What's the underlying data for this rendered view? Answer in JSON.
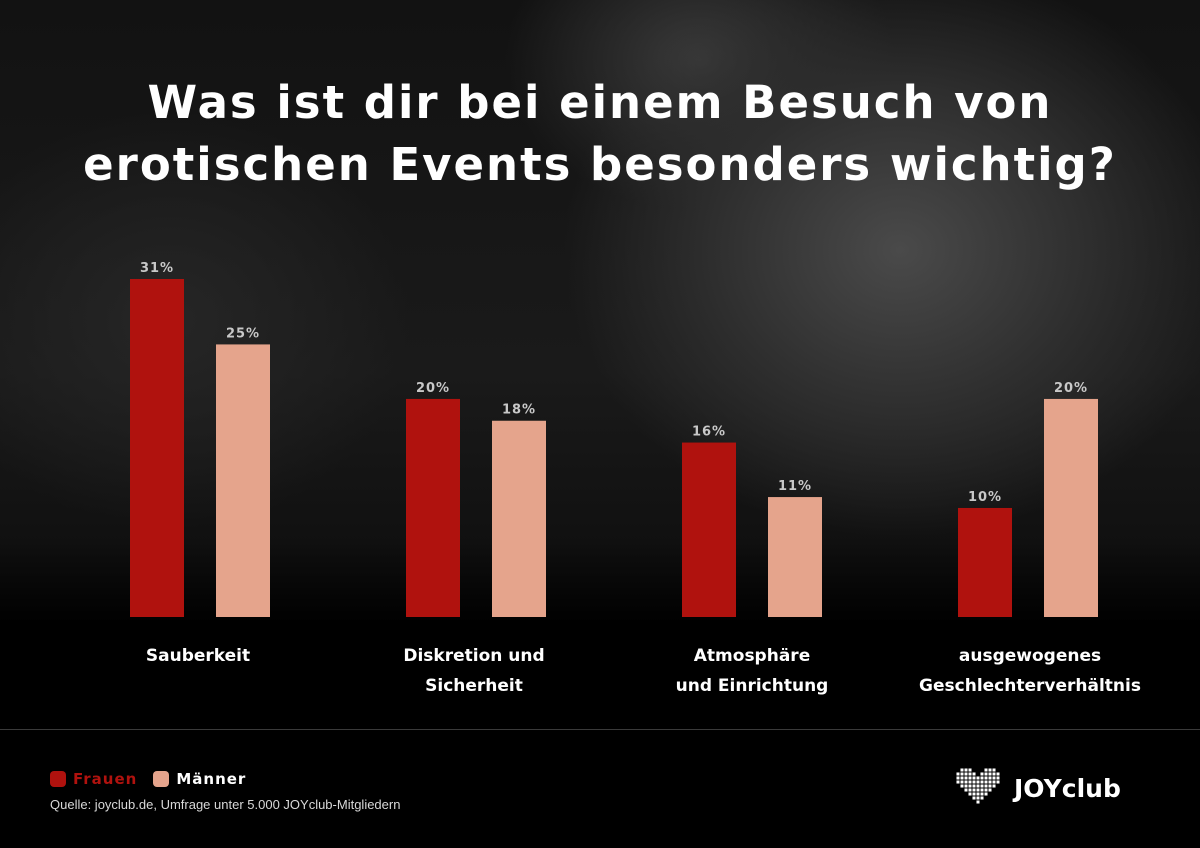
{
  "title_line1": "Was ist dir bei einem Besuch von",
  "title_line2": "erotischen Events besonders wichtig?",
  "colors": {
    "frauen": "#b0120e",
    "maenner": "#e5a48c",
    "value_label": "#c8c8c8"
  },
  "chart_data": {
    "type": "bar",
    "categories": [
      [
        "Sauberkeit"
      ],
      [
        "Diskretion und",
        "Sicherheit"
      ],
      [
        "Atmosphäre",
        "und Einrichtung"
      ],
      [
        "ausgewogenes",
        "Geschlechterverhältnis"
      ]
    ],
    "series": [
      {
        "name": "Frauen",
        "values": [
          31,
          20,
          16,
          10
        ],
        "labels": [
          "31%",
          "20%",
          "16%",
          "10%"
        ]
      },
      {
        "name": "Männer",
        "values": [
          25,
          18,
          11,
          20
        ],
        "labels": [
          "25%",
          "18%",
          "11%",
          "20%"
        ]
      }
    ],
    "ylim": [
      0,
      31
    ],
    "legend_position": "bottom-left"
  },
  "legend": {
    "frauen": "Frauen",
    "maenner": "Männer"
  },
  "source": "Quelle: joyclub.de, Umfrage unter 5.000 JOYclub-Mitgliedern",
  "logo": {
    "text": "JOYclub",
    "icon": "heart-pixel-icon"
  }
}
